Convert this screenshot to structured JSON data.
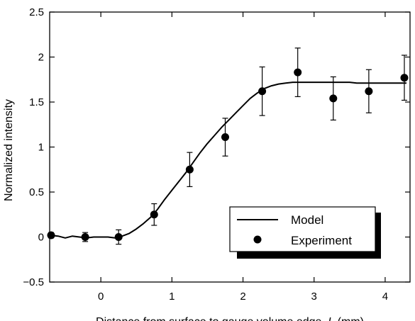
{
  "chart_data": {
    "type": "scatter",
    "title": "",
    "xlabel": "Distance from surface to gauge volume edge, L (mm)",
    "ylabel": "Normalized intensity",
    "xlim": [
      -0.72,
      4.35
    ],
    "ylim": [
      -0.5,
      2.5
    ],
    "xticks": [
      0,
      1,
      2,
      3,
      4
    ],
    "yticks": [
      -0.5,
      0,
      0.5,
      1,
      1.5,
      2,
      2.5
    ],
    "xtick_labels": [
      "0",
      "1",
      "2",
      "3",
      "4"
    ],
    "ytick_labels": [
      "−0.5",
      "0",
      "0.5",
      "1",
      "1.5",
      "2",
      "2.5"
    ],
    "grid": false,
    "legend_position": "lower-right",
    "series": [
      {
        "name": "Model",
        "type": "line",
        "x": [
          -0.72,
          -0.6,
          -0.5,
          -0.4,
          -0.3,
          -0.2,
          -0.1,
          0.0,
          0.1,
          0.2,
          0.3,
          0.4,
          0.5,
          0.6,
          0.7,
          0.8,
          0.9,
          1.0,
          1.1,
          1.2,
          1.3,
          1.4,
          1.5,
          1.6,
          1.7,
          1.8,
          1.9,
          2.0,
          2.1,
          2.2,
          2.3,
          2.4,
          2.5,
          2.6,
          2.7,
          2.8,
          3.0,
          3.2,
          3.4,
          3.5,
          3.6,
          3.7,
          3.8,
          4.0,
          4.2,
          4.3
        ],
        "y": [
          0.02,
          0.01,
          -0.01,
          0.01,
          0.0,
          -0.01,
          0.0,
          0.0,
          0.0,
          -0.01,
          0.01,
          0.04,
          0.09,
          0.15,
          0.22,
          0.31,
          0.42,
          0.52,
          0.62,
          0.72,
          0.83,
          0.94,
          1.04,
          1.13,
          1.22,
          1.3,
          1.38,
          1.46,
          1.54,
          1.6,
          1.65,
          1.68,
          1.7,
          1.71,
          1.72,
          1.72,
          1.72,
          1.72,
          1.72,
          1.72,
          1.71,
          1.71,
          1.71,
          1.71,
          1.71,
          1.71
        ]
      },
      {
        "name": "Experiment",
        "type": "scatter",
        "x": [
          -0.7,
          -0.22,
          0.25,
          0.75,
          1.25,
          1.75,
          2.27,
          2.77,
          3.27,
          3.77,
          4.27
        ],
        "y": [
          0.02,
          0.0,
          0.0,
          0.25,
          0.75,
          1.11,
          1.62,
          1.83,
          1.54,
          1.62,
          1.77
        ],
        "err": [
          0.03,
          0.05,
          0.08,
          0.12,
          0.19,
          0.21,
          0.27,
          0.27,
          0.24,
          0.24,
          0.25
        ]
      }
    ]
  }
}
